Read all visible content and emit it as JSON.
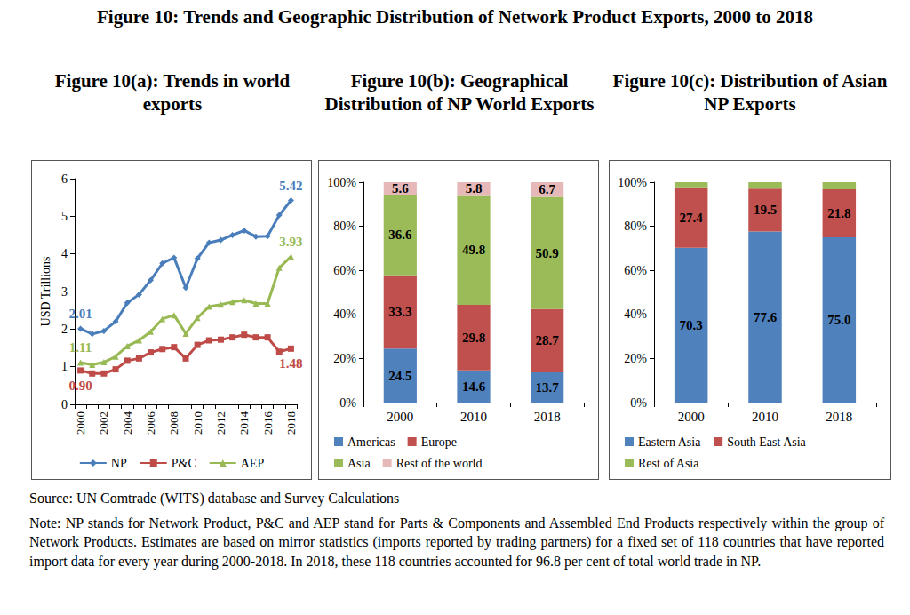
{
  "title": "Figure 10: Trends and Geographic Distribution of Network Product Exports, 2000 to 2018",
  "source": "Source: UN Comtrade (WITS) database and Survey Calculations",
  "note": "Note: NP stands for Network Product, P&C and AEP stand for Parts & Components and Assembled End Products respectively within the group of Network Products. Estimates are based on mirror statistics (imports reported by trading partners) for a fixed set of 118 countries that have reported import data for every year during 2000-2018. In 2018, these 118 countries accounted for 96.8 per cent of total world trade in NP.",
  "chart_data": [
    {
      "type": "line",
      "title": "Figure 10(a): Trends in world exports",
      "y_label": "USD Trillions",
      "categories": [
        "2000",
        null,
        "2002",
        null,
        "2004",
        null,
        "2006",
        null,
        "2008",
        null,
        "2010",
        null,
        "2012",
        null,
        "2014",
        null,
        "2016",
        null,
        "2018"
      ],
      "series": [
        {
          "name": "NP",
          "color": "#4a7ebb",
          "marker": "diamond",
          "values": [
            2.01,
            1.87,
            1.95,
            2.2,
            2.7,
            2.92,
            3.3,
            3.75,
            3.9,
            3.1,
            3.88,
            4.3,
            4.37,
            4.5,
            4.62,
            4.46,
            4.47,
            5.03,
            5.42
          ],
          "value_labels": [
            "2.01",
            null,
            null,
            null,
            null,
            null,
            null,
            null,
            null,
            null,
            null,
            null,
            null,
            null,
            null,
            null,
            null,
            null,
            "5.42"
          ]
        },
        {
          "name": "P&C",
          "color": "#be4b48",
          "marker": "square",
          "values": [
            0.9,
            0.82,
            0.82,
            0.93,
            1.16,
            1.22,
            1.38,
            1.47,
            1.52,
            1.22,
            1.58,
            1.7,
            1.72,
            1.78,
            1.85,
            1.78,
            1.78,
            1.4,
            1.48
          ],
          "value_labels": [
            "0.90",
            null,
            null,
            null,
            null,
            null,
            null,
            null,
            null,
            null,
            null,
            null,
            null,
            null,
            null,
            null,
            null,
            null,
            "1.48"
          ]
        },
        {
          "name": "AEP",
          "color": "#98b954",
          "marker": "triangle",
          "values": [
            1.11,
            1.05,
            1.12,
            1.27,
            1.55,
            1.7,
            1.93,
            2.27,
            2.37,
            1.88,
            2.3,
            2.6,
            2.65,
            2.72,
            2.77,
            2.68,
            2.68,
            3.63,
            3.93
          ],
          "value_labels": [
            "1.11",
            null,
            null,
            null,
            null,
            null,
            null,
            null,
            null,
            null,
            null,
            null,
            null,
            null,
            null,
            null,
            null,
            null,
            "3.93"
          ]
        }
      ],
      "ylim": [
        0,
        6
      ],
      "yticks": [
        0,
        1,
        2,
        3,
        4,
        5,
        6
      ],
      "grid": false,
      "legend": "bottom",
      "data_labels": true
    },
    {
      "type": "bar",
      "title": "Figure 10(b): Geographical Distribution of NP World Exports",
      "categories": [
        "2000",
        "2010",
        "2018"
      ],
      "series": [
        {
          "name": "Americas",
          "color": "#4f81bd",
          "values": [
            24.5,
            14.6,
            13.7
          ]
        },
        {
          "name": "Europe",
          "color": "#c0504d",
          "values": [
            33.3,
            29.8,
            28.7
          ]
        },
        {
          "name": "Asia",
          "color": "#9bbb59",
          "values": [
            36.6,
            49.8,
            50.9
          ]
        },
        {
          "name": "Rest of the world",
          "color": "#e6b9b8",
          "values": [
            5.6,
            5.8,
            6.7
          ]
        }
      ],
      "ylim": [
        0,
        100
      ],
      "yticks": [
        {
          "value": 0,
          "label": "0%"
        },
        {
          "value": 20,
          "label": "20%"
        },
        {
          "value": 40,
          "label": "40%"
        },
        {
          "value": 60,
          "label": "60%"
        },
        {
          "value": 80,
          "label": "80%"
        },
        {
          "value": 100,
          "label": "100%"
        }
      ],
      "stacked": true,
      "grid": false,
      "legend": "bottom",
      "data_labels": true
    },
    {
      "type": "bar",
      "title": "Figure 10(c): Distribution of Asian NP Exports",
      "categories": [
        "2000",
        "2010",
        "2018"
      ],
      "series": [
        {
          "name": "Eastern Asia",
          "color": "#4f81bd",
          "values": [
            70.3,
            77.6,
            75.0
          ],
          "value_labels": [
            "70.3",
            "77.6",
            "75.0"
          ]
        },
        {
          "name": "South East Asia",
          "color": "#c0504d",
          "values": [
            27.4,
            19.5,
            21.8
          ],
          "value_labels": [
            "27.4",
            "19.5",
            "21.8"
          ]
        },
        {
          "name": "Rest of Asia",
          "color": "#9bbb59",
          "values": [
            2.3,
            2.9,
            3.2
          ],
          "value_labels": [
            null,
            null,
            null
          ]
        }
      ],
      "ylim": [
        0,
        100
      ],
      "yticks": [
        {
          "value": 0,
          "label": "0%"
        },
        {
          "value": 20,
          "label": "20%"
        },
        {
          "value": 40,
          "label": "40%"
        },
        {
          "value": 60,
          "label": "60%"
        },
        {
          "value": 80,
          "label": "80%"
        },
        {
          "value": 100,
          "label": "100%"
        }
      ],
      "stacked": true,
      "grid": false,
      "legend": "bottom",
      "data_labels": true
    }
  ]
}
